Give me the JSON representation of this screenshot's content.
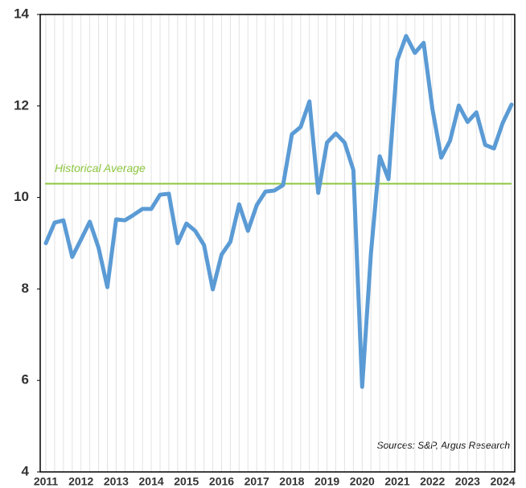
{
  "chart_data": {
    "type": "line",
    "categories": [
      "2011",
      null,
      null,
      null,
      "2012",
      null,
      null,
      null,
      "2013",
      null,
      null,
      null,
      "2014",
      null,
      null,
      null,
      "2015",
      null,
      null,
      null,
      "2016",
      null,
      null,
      null,
      "2017",
      null,
      null,
      null,
      "2018",
      null,
      null,
      null,
      "2019",
      null,
      null,
      null,
      "2020",
      null,
      null,
      null,
      "2021",
      null,
      null,
      null,
      "2022",
      null,
      null,
      null,
      "2023",
      null,
      null,
      null,
      "2024",
      null
    ],
    "series": [
      {
        "color": "#5b9bd5",
        "values": [
          9.0,
          9.45,
          9.5,
          8.7,
          9.08,
          9.47,
          8.9,
          8.04,
          9.52,
          9.5,
          9.62,
          9.75,
          9.75,
          10.06,
          10.08,
          9.0,
          9.43,
          9.27,
          8.96,
          7.99,
          8.75,
          9.03,
          9.85,
          9.27,
          9.83,
          10.13,
          10.15,
          10.27,
          11.38,
          11.54,
          12.1,
          10.1,
          11.2,
          11.4,
          11.2,
          10.6,
          5.86,
          8.78,
          10.9,
          10.4,
          13.0,
          13.53,
          13.16,
          13.38,
          11.93,
          10.87,
          11.24,
          12.01,
          11.65,
          11.86,
          11.15,
          11.07,
          11.63,
          12.03
        ]
      }
    ],
    "reference_line": {
      "label": "Historical Average",
      "value": 10.3,
      "color": "#8dc63f"
    },
    "source": "Sources: S&P, Argus Research",
    "ylim": [
      4,
      14
    ],
    "yticks": [
      4,
      6,
      8,
      10,
      12,
      14
    ],
    "grid": true
  }
}
